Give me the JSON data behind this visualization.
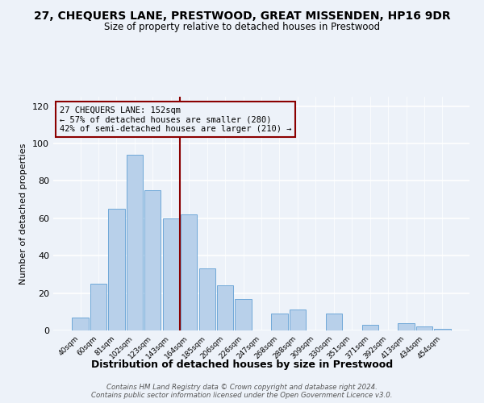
{
  "title_main": "27, CHEQUERS LANE, PRESTWOOD, GREAT MISSENDEN, HP16 9DR",
  "title_sub": "Size of property relative to detached houses in Prestwood",
  "xlabel": "Distribution of detached houses by size in Prestwood",
  "ylabel": "Number of detached properties",
  "bin_labels": [
    "40sqm",
    "60sqm",
    "81sqm",
    "102sqm",
    "123sqm",
    "143sqm",
    "164sqm",
    "185sqm",
    "206sqm",
    "226sqm",
    "247sqm",
    "268sqm",
    "288sqm",
    "309sqm",
    "330sqm",
    "351sqm",
    "371sqm",
    "392sqm",
    "413sqm",
    "434sqm",
    "454sqm"
  ],
  "bar_heights": [
    7,
    25,
    65,
    94,
    75,
    60,
    62,
    33,
    24,
    17,
    0,
    9,
    11,
    0,
    9,
    0,
    3,
    0,
    4,
    2,
    1
  ],
  "bar_color": "#b8d0ea",
  "bar_edge_color": "#6fa8d8",
  "property_line_x": 5.5,
  "property_line_color": "#8b0000",
  "annotation_text": "27 CHEQUERS LANE: 152sqm\n← 57% of detached houses are smaller (280)\n42% of semi-detached houses are larger (210) →",
  "annotation_box_edge": "#8b0000",
  "ylim": [
    0,
    125
  ],
  "yticks": [
    0,
    20,
    40,
    60,
    80,
    100,
    120
  ],
  "footer_text": "Contains HM Land Registry data © Crown copyright and database right 2024.\nContains public sector information licensed under the Open Government Licence v3.0.",
  "background_color": "#edf2f9"
}
